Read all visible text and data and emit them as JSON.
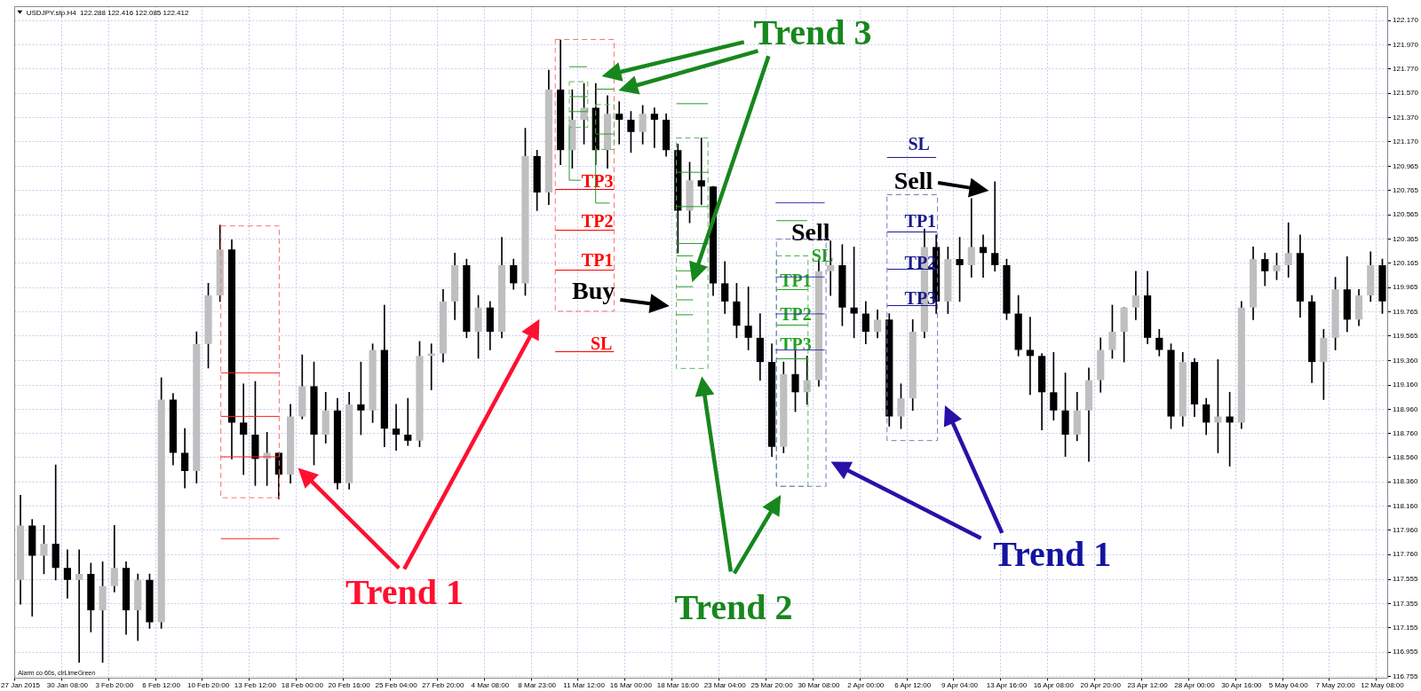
{
  "chart_data": {
    "type": "candlestick",
    "title": "USDJPY.stp.H4  122.288 122.416 122.085 122.412",
    "categories": [
      "27 Jan 2015",
      null,
      null,
      null,
      "30 Jan 08:00",
      null,
      null,
      null,
      "3 Feb 20:00",
      null,
      null,
      null,
      "6 Feb 12:00",
      null,
      null,
      null,
      "10 Feb 20:00",
      null,
      null,
      null,
      "13 Feb 12:00",
      null,
      null,
      null,
      "18 Feb 00:00",
      null,
      null,
      null,
      "20 Feb 16:00",
      null,
      null,
      null,
      "25 Feb 04:00",
      null,
      null,
      null,
      "27 Feb 20:00",
      null,
      null,
      null,
      "4 Mar 08:00",
      null,
      null,
      null,
      "8 Mar 23:00",
      null,
      null,
      null,
      "11 Mar 12:00",
      null,
      null,
      null,
      "16 Mar 00:00",
      null,
      null,
      null,
      "18 Mar 16:00",
      null,
      null,
      null,
      "23 Mar 04:00",
      null,
      null,
      null,
      "25 Mar 20:00",
      null,
      null,
      null,
      "30 Mar 08:00",
      null,
      null,
      null,
      "2 Apr 00:00",
      null,
      null,
      null,
      "6 Apr 12:00",
      null,
      null,
      null,
      "9 Apr 04:00",
      null,
      null,
      null,
      "13 Apr 16:00",
      null,
      null,
      null,
      "16 Apr 08:00",
      null,
      null,
      null,
      "20 Apr 20:00",
      null,
      null,
      null,
      "23 Apr 12:00",
      null,
      null,
      null,
      "28 Apr 00:00",
      null,
      null,
      null,
      "30 Apr 16:00",
      null,
      null,
      null,
      "5 May 04:00",
      null,
      null,
      null,
      "7 May 20:00",
      null,
      null,
      null,
      "12 May 08:00"
    ],
    "ohlc": [
      [
        117.55,
        118.25,
        117.35,
        118.0
      ],
      [
        118.0,
        118.05,
        117.25,
        117.75
      ],
      [
        117.75,
        118.0,
        117.6,
        117.85
      ],
      [
        117.85,
        118.5,
        117.55,
        117.65
      ],
      [
        117.65,
        117.8,
        117.4,
        117.55
      ],
      [
        117.55,
        117.8,
        116.87,
        117.6
      ],
      [
        117.6,
        117.69,
        117.12,
        117.3
      ],
      [
        117.3,
        117.7,
        116.87,
        117.5
      ],
      [
        117.5,
        118.0,
        117.45,
        117.65
      ],
      [
        117.65,
        117.7,
        117.1,
        117.3
      ],
      [
        117.3,
        117.6,
        117.05,
        117.55
      ],
      [
        117.55,
        117.6,
        117.15,
        117.2
      ],
      [
        117.2,
        119.22,
        117.15,
        119.04
      ],
      [
        119.04,
        119.09,
        118.5,
        118.6
      ],
      [
        118.6,
        118.8,
        118.31,
        118.45
      ],
      [
        118.45,
        119.6,
        118.35,
        119.5
      ],
      [
        119.5,
        120.0,
        119.3,
        119.9
      ],
      [
        119.9,
        120.48,
        119.85,
        120.28
      ],
      [
        120.28,
        120.36,
        118.55,
        118.85
      ],
      [
        118.85,
        119.17,
        118.42,
        118.75
      ],
      [
        118.75,
        119.19,
        118.33,
        118.55
      ],
      [
        118.55,
        118.77,
        118.33,
        118.6
      ],
      [
        118.6,
        118.6,
        118.22,
        118.42
      ],
      [
        118.42,
        119.0,
        118.35,
        118.9
      ],
      [
        118.9,
        119.41,
        118.88,
        119.15
      ],
      [
        119.15,
        119.35,
        118.5,
        118.75
      ],
      [
        118.75,
        119.1,
        118.68,
        118.95
      ],
      [
        118.95,
        119.05,
        118.3,
        118.35
      ],
      [
        118.35,
        119.1,
        118.3,
        119.0
      ],
      [
        119.0,
        119.35,
        118.75,
        118.95
      ],
      [
        118.95,
        119.5,
        118.85,
        119.45
      ],
      [
        119.45,
        119.82,
        118.65,
        118.8
      ],
      [
        118.8,
        119.0,
        118.62,
        118.75
      ],
      [
        118.75,
        119.05,
        118.66,
        118.7
      ],
      [
        118.7,
        119.52,
        118.65,
        119.4
      ],
      [
        119.4,
        119.5,
        119.12,
        119.42
      ],
      [
        119.42,
        119.95,
        119.35,
        119.85
      ],
      [
        119.85,
        120.25,
        119.7,
        120.15
      ],
      [
        120.15,
        120.2,
        119.55,
        119.6
      ],
      [
        119.6,
        119.9,
        119.38,
        119.8
      ],
      [
        119.8,
        119.85,
        119.45,
        119.6
      ],
      [
        119.6,
        120.38,
        119.55,
        120.15
      ],
      [
        120.15,
        120.2,
        119.95,
        120.0
      ],
      [
        120.0,
        121.28,
        119.9,
        121.05
      ],
      [
        121.05,
        121.1,
        120.6,
        120.75
      ],
      [
        120.75,
        121.76,
        120.65,
        121.6
      ],
      [
        121.6,
        122.01,
        120.98,
        121.1
      ],
      [
        121.1,
        121.6,
        120.95,
        121.35
      ],
      [
        121.35,
        121.65,
        121.15,
        121.45
      ],
      [
        121.45,
        121.65,
        120.98,
        121.1
      ],
      [
        121.1,
        121.55,
        120.95,
        121.4
      ],
      [
        121.4,
        121.5,
        121.15,
        121.35
      ],
      [
        121.35,
        121.42,
        121.08,
        121.25
      ],
      [
        121.25,
        121.47,
        121.15,
        121.4
      ],
      [
        121.4,
        121.45,
        121.12,
        121.35
      ],
      [
        121.35,
        121.4,
        121.05,
        121.1
      ],
      [
        121.1,
        121.15,
        120.25,
        120.6
      ],
      [
        120.6,
        121.0,
        120.5,
        120.85
      ],
      [
        120.85,
        121.2,
        120.65,
        120.8
      ],
      [
        120.8,
        120.8,
        119.9,
        120.0
      ],
      [
        120.0,
        120.18,
        119.75,
        119.85
      ],
      [
        119.85,
        120.0,
        119.55,
        119.65
      ],
      [
        119.65,
        119.97,
        119.45,
        119.55
      ],
      [
        119.55,
        119.75,
        119.2,
        119.35
      ],
      [
        119.35,
        119.5,
        118.57,
        118.65
      ],
      [
        118.65,
        119.35,
        118.6,
        119.25
      ],
      [
        119.25,
        119.45,
        118.94,
        119.1
      ],
      [
        119.1,
        119.4,
        119.0,
        119.2
      ],
      [
        119.2,
        120.2,
        119.15,
        120.1
      ],
      [
        120.1,
        120.35,
        119.9,
        120.15
      ],
      [
        120.15,
        120.32,
        119.65,
        119.8
      ],
      [
        119.8,
        120.3,
        119.55,
        119.75
      ],
      [
        119.75,
        119.85,
        119.5,
        119.6
      ],
      [
        119.6,
        119.78,
        119.55,
        119.7
      ],
      [
        119.7,
        119.75,
        118.82,
        118.9
      ],
      [
        118.9,
        119.17,
        118.8,
        119.05
      ],
      [
        119.05,
        119.7,
        118.95,
        119.6
      ],
      [
        119.6,
        120.45,
        119.55,
        120.3
      ],
      [
        120.3,
        120.4,
        119.75,
        119.85
      ],
      [
        119.85,
        120.3,
        119.75,
        120.2
      ],
      [
        120.2,
        120.38,
        119.85,
        120.15
      ],
      [
        120.15,
        120.7,
        120.05,
        120.3
      ],
      [
        120.3,
        120.4,
        120.05,
        120.25
      ],
      [
        120.25,
        120.84,
        120.1,
        120.15
      ],
      [
        120.15,
        120.2,
        119.7,
        119.75
      ],
      [
        119.75,
        119.9,
        119.4,
        119.45
      ],
      [
        119.45,
        119.72,
        119.08,
        119.4
      ],
      [
        119.4,
        119.42,
        118.79,
        119.1
      ],
      [
        119.1,
        119.43,
        118.87,
        118.95
      ],
      [
        118.95,
        119.26,
        118.57,
        118.75
      ],
      [
        118.75,
        119.1,
        118.7,
        118.95
      ],
      [
        118.95,
        119.3,
        118.53,
        119.2
      ],
      [
        119.2,
        119.55,
        119.1,
        119.45
      ],
      [
        119.45,
        119.82,
        119.38,
        119.6
      ],
      [
        119.6,
        119.8,
        119.35,
        119.8
      ],
      [
        119.8,
        120.1,
        119.7,
        119.9
      ],
      [
        119.9,
        120.1,
        119.5,
        119.55
      ],
      [
        119.55,
        119.62,
        119.4,
        119.45
      ],
      [
        119.45,
        119.5,
        118.8,
        118.9
      ],
      [
        118.9,
        119.43,
        118.82,
        119.35
      ],
      [
        119.35,
        119.38,
        118.9,
        119.0
      ],
      [
        119.0,
        119.05,
        118.75,
        118.85
      ],
      [
        118.85,
        119.37,
        118.6,
        118.9
      ],
      [
        118.9,
        119.1,
        118.49,
        118.85
      ],
      [
        118.85,
        119.85,
        118.8,
        119.8
      ],
      [
        119.8,
        120.3,
        119.7,
        120.2
      ],
      [
        120.2,
        120.25,
        119.98,
        120.1
      ],
      [
        120.1,
        120.25,
        120.03,
        120.15
      ],
      [
        120.15,
        120.5,
        120.05,
        120.25
      ],
      [
        120.25,
        120.4,
        119.72,
        119.85
      ],
      [
        119.85,
        119.9,
        119.18,
        119.35
      ],
      [
        119.35,
        119.62,
        119.04,
        119.55
      ],
      [
        119.55,
        120.05,
        119.45,
        119.95
      ],
      [
        119.95,
        120.22,
        119.6,
        119.7
      ],
      [
        119.7,
        119.95,
        119.65,
        119.9
      ],
      [
        119.9,
        120.26,
        119.85,
        120.15
      ],
      [
        120.15,
        120.2,
        119.75,
        119.85
      ]
    ],
    "colors": [
      "#bfbfbf",
      "#000000",
      "#bfbfbf",
      "#000000",
      "#000000",
      "#bfbfbf",
      "#000000",
      "#bfbfbf",
      "#bfbfbf",
      "#000000",
      "#bfbfbf",
      "#000000",
      "#bfbfbf",
      "#000000",
      "#000000",
      "#bfbfbf",
      "#bfbfbf",
      "#bfbfbf",
      "#000000",
      "#000000",
      "#000000",
      "#bfbfbf",
      "#000000",
      "#bfbfbf",
      "#bfbfbf",
      "#000000",
      "#bfbfbf",
      "#000000",
      "#bfbfbf",
      "#000000",
      "#bfbfbf",
      "#000000",
      "#000000",
      "#000000",
      "#bfbfbf",
      "#bfbfbf",
      "#bfbfbf",
      "#bfbfbf",
      "#000000",
      "#bfbfbf",
      "#000000",
      "#bfbfbf",
      "#000000",
      "#bfbfbf",
      "#000000",
      "#bfbfbf",
      "#000000",
      "#bfbfbf",
      "#bfbfbf",
      "#000000",
      "#bfbfbf",
      "#000000",
      "#000000",
      "#bfbfbf",
      "#000000",
      "#000000",
      "#000000",
      "#bfbfbf",
      "#000000",
      "#000000",
      "#000000",
      "#000000",
      "#000000",
      "#000000",
      "#000000",
      "#bfbfbf",
      "#000000",
      "#bfbfbf",
      "#bfbfbf",
      "#bfbfbf",
      "#000000",
      "#000000",
      "#000000",
      "#bfbfbf",
      "#000000",
      "#bfbfbf",
      "#bfbfbf",
      "#bfbfbf",
      "#000000",
      "#bfbfbf",
      "#000000",
      "#bfbfbf",
      "#000000",
      "#000000",
      "#000000",
      "#000000",
      "#000000",
      "#000000",
      "#000000",
      "#000000",
      "#bfbfbf",
      "#bfbfbf",
      "#bfbfbf",
      "#bfbfbf",
      "#bfbfbf",
      "#bfbfbf",
      "#000000",
      "#000000",
      "#000000",
      "#bfbfbf",
      "#000000",
      "#000000",
      "#bfbfbf",
      "#000000",
      "#bfbfbf",
      "#bfbfbf",
      "#000000",
      "#bfbfbf",
      "#bfbfbf",
      "#000000",
      "#000000",
      "#bfbfbf",
      "#bfbfbf",
      "#000000",
      "#bfbfbf",
      "#bfbfbf",
      "#000000"
    ],
    "color": "#000000",
    "ylim": [
      116.74,
      122.29
    ],
    "yticks": [
      116.755,
      116.955,
      117.155,
      117.355,
      117.555,
      {
        "value": 117.76,
        "label": "117.760"
      },
      {
        "value": 117.96,
        "label": "117.960"
      },
      {
        "value": 118.16,
        "label": "118.160"
      },
      {
        "value": 118.36,
        "label": "118.360"
      },
      {
        "value": 118.56,
        "label": "118.560"
      },
      {
        "value": 118.76,
        "label": "118.760"
      },
      {
        "value": 118.96,
        "label": "118.960"
      },
      {
        "value": 119.16,
        "label": "119.160"
      },
      {
        "value": 119.36,
        "label": "119.360"
      },
      119.565,
      119.765,
      119.965,
      120.165,
      120.365,
      120.565,
      120.765,
      120.965,
      {
        "value": 121.17,
        "label": "121.170"
      },
      {
        "value": 121.37,
        "label": "121.370"
      },
      {
        "value": 121.57,
        "label": "121.570"
      },
      {
        "value": 121.77,
        "label": "121.770"
      },
      {
        "value": 121.97,
        "label": "121.970"
      },
      {
        "value": 122.17,
        "label": "122.170"
      }
    ],
    "grid": true,
    "ref_lines": [
      {
        "axis": "y",
        "value": 120.78,
        "label": "TP3",
        "color": "#ff0000"
      },
      {
        "axis": "y",
        "value": 120.44,
        "label": "TP2",
        "color": "#ff0000"
      },
      {
        "axis": "y",
        "value": 120.11,
        "label": "TP1",
        "color": "#ff0000"
      },
      {
        "axis": "y",
        "value": 119.44,
        "label": "SL",
        "color": "#ff0000"
      },
      {
        "axis": "y",
        "value": 120.23,
        "label": "SL",
        "color": "#22a022",
        "line_style": "dashed"
      },
      {
        "axis": "y",
        "value": 119.95,
        "label": "TP1",
        "color": "#22a022"
      },
      {
        "axis": "y",
        "value": 119.66,
        "label": "TP2",
        "color": "#22a022"
      },
      {
        "axis": "y",
        "value": 119.38,
        "label": "TP3",
        "color": "#22a022"
      },
      {
        "axis": "y",
        "value": 121.04,
        "label": "SL",
        "color": "#1a1a8a"
      },
      {
        "axis": "y",
        "value": 120.43,
        "label": "TP1",
        "color": "#1a1a8a"
      },
      {
        "axis": "y",
        "value": 120.12,
        "label": "TP2",
        "color": "#1a1a8a"
      },
      {
        "axis": "y",
        "value": 119.82,
        "label": "TP3",
        "color": "#1a1a8a"
      }
    ],
    "annotations": [
      "Trend 1",
      "Trend 2",
      "Trend 3",
      "Trend 1",
      "Buy",
      "Sell",
      "Sell",
      "Alarm co 60s, clrLimeGreen"
    ]
  }
}
